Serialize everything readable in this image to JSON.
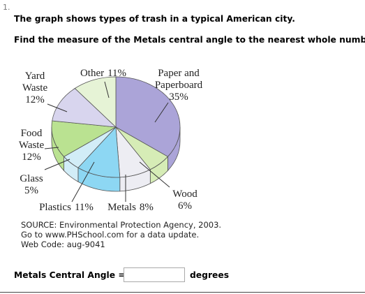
{
  "question_number": "1.",
  "question": [
    "The graph shows types of trash in a typical American city.",
    "Find the measure of the Metals central angle to the nearest whole number."
  ],
  "chart_data": {
    "type": "pie",
    "categories": [
      "Paper and Paperboard",
      "Wood",
      "Metals",
      "Plastics",
      "Glass",
      "Food Waste",
      "Yard Waste",
      "Other"
    ],
    "values": [
      35,
      6,
      8,
      11,
      5,
      12,
      12,
      11
    ],
    "value_labels": [
      "35%",
      "6%",
      "8%",
      "11%",
      "5%",
      "12%",
      "12%",
      "11%"
    ],
    "colors": [
      "#aba4d8",
      "#d6ecb6",
      "#ededf3",
      "#8dd7f3",
      "#d2edf7",
      "#bae291",
      "#d8d5ee",
      "#e6f3d6"
    ]
  },
  "source": [
    "SOURCE: Environmental Protection Agency, 2003.",
    "Go to www.PHSchool.com for a data update.",
    "Web Code: aug-9041"
  ],
  "answer": {
    "label": "Metals Central Angle =",
    "unit": "degrees"
  }
}
